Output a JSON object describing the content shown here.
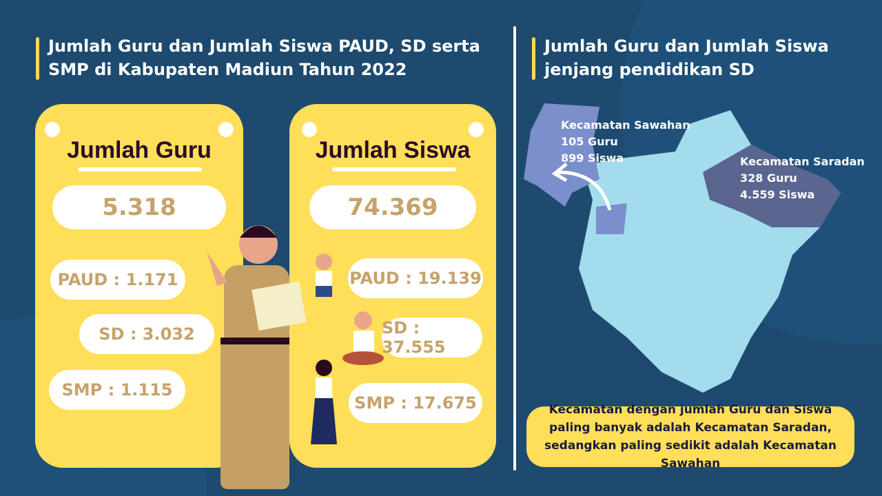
{
  "left": {
    "title": "Jumlah Guru dan Jumlah Siswa PAUD, SD serta SMP di Kabupaten Madiun Tahun 2022",
    "guru": {
      "heading": "Jumlah Guru",
      "total": "5.318",
      "paud": "PAUD : 1.171",
      "sd": "SD : 3.032",
      "smp": "SMP : 1.115"
    },
    "siswa": {
      "heading": "Jumlah Siswa",
      "total": "74.369",
      "paud": "PAUD : 19.139",
      "sd": "SD : 37.555",
      "smp": "SMP : 17.675"
    }
  },
  "right": {
    "title": "Jumlah Guru dan Jumlah Siswa jenjang pendidikan SD",
    "sawahan": {
      "name": "Kecamatan Sawahan",
      "guru": "105 Guru",
      "siswa": "899 Siswa"
    },
    "saradan": {
      "name": "Kecamatan Saradan",
      "guru": "328 Guru",
      "siswa": "4.559 Siswa"
    },
    "note": "Kecamatan dengan jumlah Guru dan Siswa paling banyak adalah Kecamatan Saradan, sedangkan paling sedikit adalah Kecamatan Sawahan"
  },
  "colors": {
    "background": "#1d4a6e",
    "card": "#ffde59",
    "number": "#c5a36b",
    "map": "#a3dcec",
    "sawahan": "#7b8fcc",
    "saradan": "#5a6590"
  }
}
